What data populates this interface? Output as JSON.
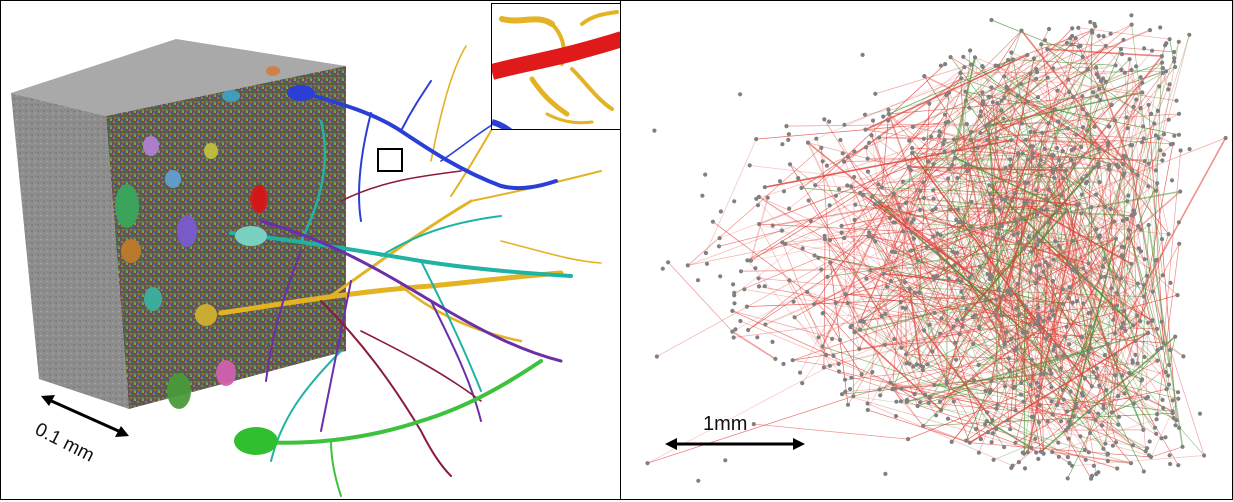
{
  "figure": {
    "left_panel": {
      "scale_bar_label": "0.1 mm",
      "colors": {
        "em_block": "#8c8c8c",
        "dendrite_yellow": "#e3b324",
        "dendrite_blue": "#2a3fd6",
        "dendrite_teal": "#1fb3a4",
        "dendrite_purple": "#6b2fa8",
        "highlight_red": "#e01a1a"
      }
    },
    "right_panel": {
      "scale_bar_label": "1mm",
      "colors": {
        "node": "#808080",
        "edge_red": "#e0443c",
        "edge_green": "#3f8f2a"
      }
    }
  }
}
